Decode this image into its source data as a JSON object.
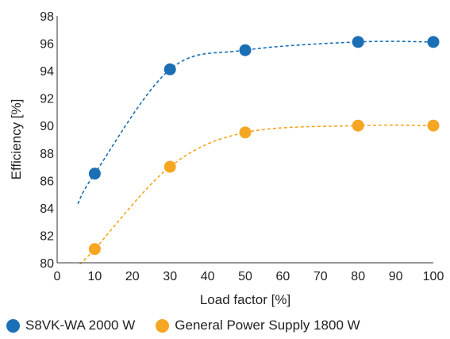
{
  "chart_data": {
    "type": "scatter",
    "title": "",
    "xlabel": "Load factor [%]",
    "ylabel": "Efficiency [%]",
    "xlim": [
      0,
      100
    ],
    "ylim": [
      80,
      98
    ],
    "xticks": [
      0,
      10,
      20,
      30,
      40,
      50,
      60,
      70,
      80,
      90,
      100
    ],
    "yticks": [
      80,
      82,
      84,
      86,
      88,
      90,
      92,
      94,
      96,
      98
    ],
    "grid": false,
    "legend_position": "bottom",
    "trendline": "dashed",
    "series": [
      {
        "name": "S8VK-WA 2000 W",
        "color": "#1a6fb5",
        "x": [
          10,
          30,
          50,
          80,
          100
        ],
        "y": [
          86.5,
          94.1,
          95.5,
          96.1,
          96.1
        ],
        "trend_start_x": 5.5,
        "trend_start_y": 84.3
      },
      {
        "name": "General Power Supply 1800 W",
        "color": "#f5a623",
        "x": [
          10,
          30,
          50,
          80,
          100
        ],
        "y": [
          81.0,
          87.0,
          89.5,
          90.0,
          90.0
        ],
        "trend_start_x": 6.0,
        "trend_start_y": 79.9
      }
    ]
  }
}
